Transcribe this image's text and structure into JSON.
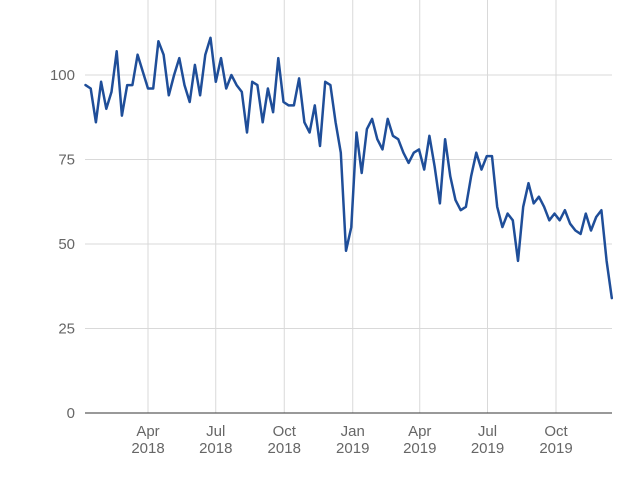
{
  "chart_data": {
    "type": "line",
    "title": "",
    "xlabel": "",
    "ylabel": "",
    "ylim": [
      0,
      125
    ],
    "yticks": [
      0,
      25,
      50,
      75,
      100
    ],
    "xlim": [
      "2018-01-01",
      "2019-12-31"
    ],
    "grid": true,
    "legend": "none",
    "line_color": "#1f4e99",
    "x_ticks": [
      {
        "date": "2018-04-01",
        "line1": "Apr",
        "line2": "2018"
      },
      {
        "date": "2018-07-01",
        "line1": "Jul",
        "line2": "2018"
      },
      {
        "date": "2018-10-01",
        "line1": "Oct",
        "line2": "2018"
      },
      {
        "date": "2019-01-01",
        "line1": "Jan",
        "line2": "2019"
      },
      {
        "date": "2019-04-01",
        "line1": "Apr",
        "line2": "2019"
      },
      {
        "date": "2019-07-01",
        "line1": "Jul",
        "line2": "2019"
      },
      {
        "date": "2019-10-01",
        "line1": "Oct",
        "line2": "2019"
      }
    ],
    "series": [
      {
        "values": [
          [
            "2018-01-07",
            97
          ],
          [
            "2018-01-14",
            96
          ],
          [
            "2018-01-21",
            86
          ],
          [
            "2018-01-28",
            98
          ],
          [
            "2018-02-04",
            90
          ],
          [
            "2018-02-11",
            95
          ],
          [
            "2018-02-18",
            107
          ],
          [
            "2018-02-25",
            88
          ],
          [
            "2018-03-04",
            97
          ],
          [
            "2018-03-11",
            97
          ],
          [
            "2018-03-18",
            106
          ],
          [
            "2018-03-25",
            101
          ],
          [
            "2018-04-01",
            96
          ],
          [
            "2018-04-08",
            96
          ],
          [
            "2018-04-15",
            110
          ],
          [
            "2018-04-22",
            106
          ],
          [
            "2018-04-29",
            94
          ],
          [
            "2018-05-06",
            100
          ],
          [
            "2018-05-13",
            105
          ],
          [
            "2018-05-20",
            97
          ],
          [
            "2018-05-27",
            92
          ],
          [
            "2018-06-03",
            103
          ],
          [
            "2018-06-10",
            94
          ],
          [
            "2018-06-17",
            106
          ],
          [
            "2018-06-24",
            111
          ],
          [
            "2018-07-01",
            98
          ],
          [
            "2018-07-08",
            105
          ],
          [
            "2018-07-15",
            96
          ],
          [
            "2018-07-22",
            100
          ],
          [
            "2018-07-29",
            97
          ],
          [
            "2018-08-05",
            95
          ],
          [
            "2018-08-12",
            83
          ],
          [
            "2018-08-19",
            98
          ],
          [
            "2018-08-26",
            97
          ],
          [
            "2018-09-02",
            86
          ],
          [
            "2018-09-09",
            96
          ],
          [
            "2018-09-16",
            89
          ],
          [
            "2018-09-23",
            105
          ],
          [
            "2018-09-30",
            92
          ],
          [
            "2018-10-07",
            91
          ],
          [
            "2018-10-14",
            91
          ],
          [
            "2018-10-21",
            99
          ],
          [
            "2018-10-28",
            86
          ],
          [
            "2018-11-04",
            83
          ],
          [
            "2018-11-11",
            91
          ],
          [
            "2018-11-18",
            79
          ],
          [
            "2018-11-25",
            98
          ],
          [
            "2018-12-02",
            97
          ],
          [
            "2018-12-09",
            86
          ],
          [
            "2018-12-16",
            77
          ],
          [
            "2018-12-23",
            48
          ],
          [
            "2018-12-30",
            55
          ],
          [
            "2019-01-06",
            83
          ],
          [
            "2019-01-13",
            71
          ],
          [
            "2019-01-20",
            84
          ],
          [
            "2019-01-27",
            87
          ],
          [
            "2019-02-03",
            81
          ],
          [
            "2019-02-10",
            78
          ],
          [
            "2019-02-17",
            87
          ],
          [
            "2019-02-24",
            82
          ],
          [
            "2019-03-03",
            81
          ],
          [
            "2019-03-10",
            77
          ],
          [
            "2019-03-17",
            74
          ],
          [
            "2019-03-24",
            77
          ],
          [
            "2019-03-31",
            78
          ],
          [
            "2019-04-07",
            72
          ],
          [
            "2019-04-14",
            82
          ],
          [
            "2019-04-21",
            73
          ],
          [
            "2019-04-28",
            62
          ],
          [
            "2019-05-05",
            81
          ],
          [
            "2019-05-12",
            70
          ],
          [
            "2019-05-19",
            63
          ],
          [
            "2019-05-26",
            60
          ],
          [
            "2019-06-02",
            61
          ],
          [
            "2019-06-09",
            70
          ],
          [
            "2019-06-16",
            77
          ],
          [
            "2019-06-23",
            72
          ],
          [
            "2019-06-30",
            76
          ],
          [
            "2019-07-07",
            76
          ],
          [
            "2019-07-14",
            61
          ],
          [
            "2019-07-21",
            55
          ],
          [
            "2019-07-28",
            59
          ],
          [
            "2019-08-04",
            57
          ],
          [
            "2019-08-11",
            45
          ],
          [
            "2019-08-18",
            61
          ],
          [
            "2019-08-25",
            68
          ],
          [
            "2019-09-01",
            62
          ],
          [
            "2019-09-08",
            64
          ],
          [
            "2019-09-15",
            61
          ],
          [
            "2019-09-22",
            57
          ],
          [
            "2019-09-29",
            59
          ],
          [
            "2019-10-06",
            57
          ],
          [
            "2019-10-13",
            60
          ],
          [
            "2019-10-20",
            56
          ],
          [
            "2019-10-27",
            54
          ],
          [
            "2019-11-03",
            53
          ],
          [
            "2019-11-10",
            59
          ],
          [
            "2019-11-17",
            54
          ],
          [
            "2019-11-24",
            58
          ],
          [
            "2019-12-01",
            60
          ],
          [
            "2019-12-08",
            45
          ],
          [
            "2019-12-15",
            34
          ]
        ]
      }
    ]
  }
}
